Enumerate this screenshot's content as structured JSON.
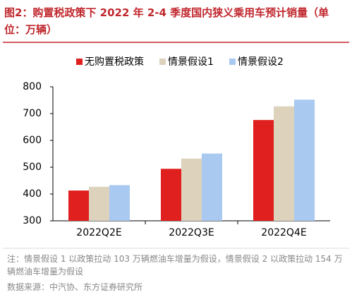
{
  "chart_data": {
    "type": "bar",
    "title": "图2：购置税政策下 2022 年 2-4 季度国内狭义乘用车预计销量（单位：万辆）",
    "categories": [
      "2022Q2E",
      "2022Q3E",
      "2022Q4E"
    ],
    "series": [
      {
        "name": "无购置税政策",
        "color": "#e0201e",
        "values": [
          413,
          494,
          676
        ]
      },
      {
        "name": "情景假设1",
        "color": "#ddd3bd",
        "values": [
          427,
          532,
          727
        ]
      },
      {
        "name": "情景假设2",
        "color": "#a9c9f0",
        "values": [
          433,
          551,
          752
        ]
      }
    ],
    "ylim": [
      300,
      800
    ],
    "yticks": [
      300,
      400,
      500,
      600,
      700,
      800
    ],
    "grid": false,
    "legend": "top",
    "note": "注：情景假设 1 以政策拉动 103 万辆燃油车增量为假设，情景假设 2 以政策拉动 154 万辆燃油车增量为假设",
    "source": "数据来源：中汽协、东方证券研究所"
  }
}
